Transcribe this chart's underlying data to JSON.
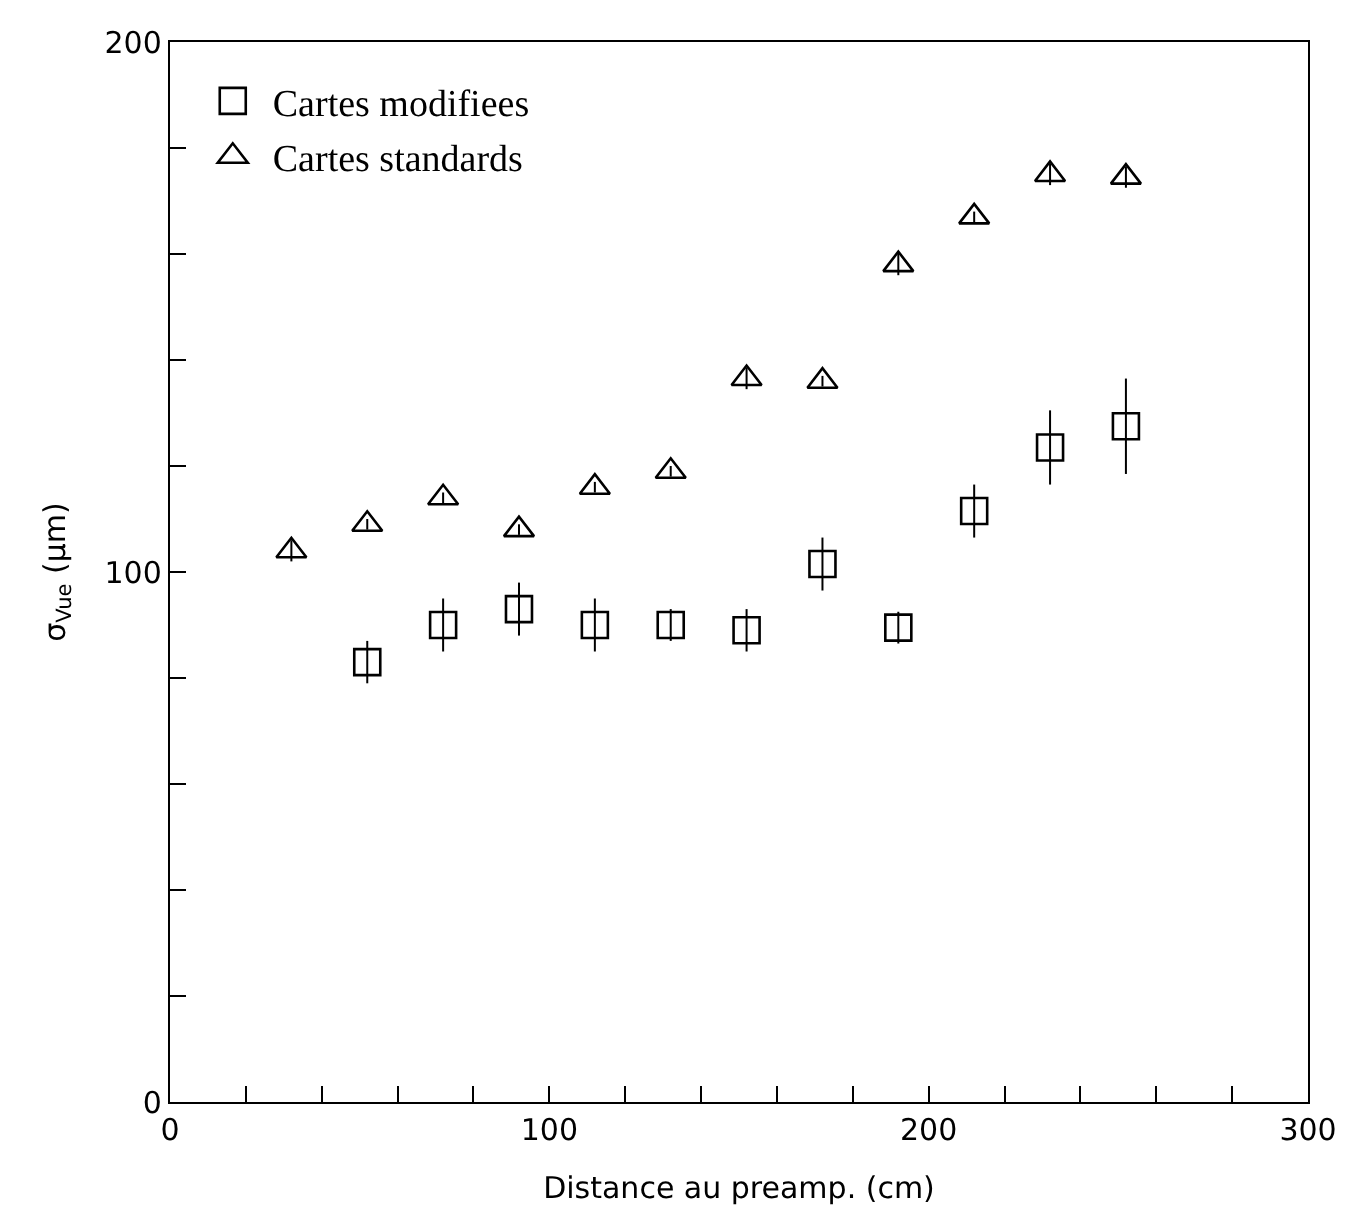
{
  "chart_data": {
    "type": "scatter",
    "xlabel": "Distance au preamp. (cm)",
    "ylabel": "σ$_{Vue}$ (μm)",
    "xlim": [
      0,
      300
    ],
    "ylim": [
      0,
      200
    ],
    "xticks": [
      0,
      {
        "value": 20,
        "label": null
      },
      {
        "value": 40,
        "label": null
      },
      {
        "value": 60,
        "label": null
      },
      {
        "value": 80,
        "label": null
      },
      100,
      {
        "value": 120,
        "label": null
      },
      {
        "value": 140,
        "label": null
      },
      {
        "value": 160,
        "label": null
      },
      {
        "value": 180,
        "label": null
      },
      200,
      {
        "value": 220,
        "label": null
      },
      {
        "value": 240,
        "label": null
      },
      {
        "value": 260,
        "label": null
      },
      {
        "value": 280,
        "label": null
      },
      300
    ],
    "yticks": [
      0,
      {
        "value": 20,
        "label": null
      },
      {
        "value": 40,
        "label": null
      },
      {
        "value": 60,
        "label": null
      },
      {
        "value": 80,
        "label": null
      },
      100,
      {
        "value": 120,
        "label": null
      },
      {
        "value": 140,
        "label": null
      },
      {
        "value": 160,
        "label": null
      },
      {
        "value": 180,
        "label": null
      },
      200
    ],
    "legend": "top left",
    "series": [
      {
        "name": "Cartes modifiees",
        "color": "#000000",
        "marker": "square",
        "x": [
          52,
          72,
          92,
          112,
          132,
          152,
          172,
          192,
          212,
          232,
          252
        ],
        "values": [
          83,
          90,
          93,
          90,
          90,
          89,
          101.5,
          89.5,
          111.5,
          123.5,
          127.5
        ],
        "errors": [
          4,
          5,
          5,
          5,
          3,
          4,
          5,
          3,
          5,
          7,
          9
        ]
      },
      {
        "name": "Cartes standards",
        "color": "#000000",
        "marker": "triangle",
        "x": [
          32,
          52,
          72,
          92,
          112,
          132,
          152,
          172,
          192,
          212,
          232,
          252
        ],
        "values": [
          104,
          109,
          114,
          108,
          116,
          119,
          136.5,
          136,
          158,
          167,
          175,
          174.5
        ],
        "errors": [
          2,
          1,
          1,
          1,
          1,
          1,
          2,
          1,
          2,
          1,
          2,
          2
        ]
      }
    ]
  }
}
